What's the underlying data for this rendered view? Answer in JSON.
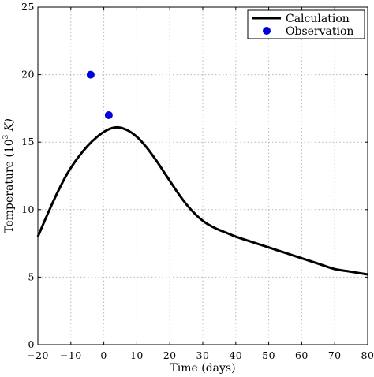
{
  "chart_data": {
    "type": "line",
    "title": "",
    "xlabel": "Time (days)",
    "ylabel": "Temperature (10",
    "ylabel_superscript": "3",
    "ylabel_unit": " K)",
    "xlim": [
      -20,
      80
    ],
    "ylim": [
      0,
      25
    ],
    "xticks": [
      -20,
      -10,
      0,
      10,
      20,
      30,
      40,
      50,
      60,
      70,
      80
    ],
    "yticks": [
      0,
      5,
      10,
      15,
      20,
      25
    ],
    "grid": true,
    "legend_position": "top-right",
    "series": [
      {
        "name": "Calculation",
        "kind": "line",
        "color": "#000000",
        "x": [
          -20,
          -17,
          -14,
          -11,
          -8,
          -5,
          -2,
          1,
          4,
          7,
          10,
          13,
          16,
          19,
          22,
          25,
          28,
          31,
          34,
          37,
          40,
          45,
          50,
          55,
          60,
          65,
          70,
          75,
          80
        ],
        "y": [
          8.0,
          9.7,
          11.3,
          12.7,
          13.8,
          14.7,
          15.4,
          15.9,
          16.1,
          15.9,
          15.4,
          14.6,
          13.6,
          12.5,
          11.4,
          10.4,
          9.6,
          9.0,
          8.6,
          8.3,
          8.0,
          7.6,
          7.2,
          6.8,
          6.4,
          6.0,
          5.6,
          5.4,
          5.2
        ]
      },
      {
        "name": "Observation",
        "kind": "scatter",
        "color": "#0000dd",
        "x": [
          -4,
          1.5
        ],
        "y": [
          20,
          17
        ]
      }
    ]
  }
}
